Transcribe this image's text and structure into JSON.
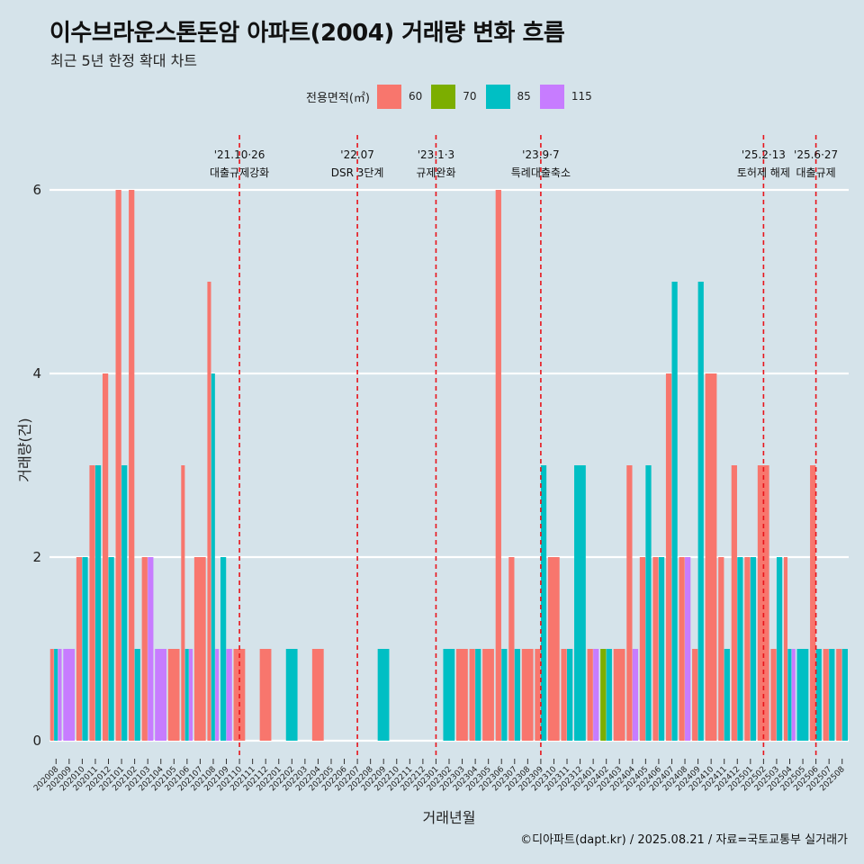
{
  "header": {
    "title": "이수브라운스톤돈암 아파트(2004) 거래량 변화 흐름",
    "subtitle": "최근 5년 한정 확대 차트"
  },
  "legend": {
    "title": "전용면적(㎡)",
    "items": [
      {
        "label": "60",
        "color": "#f8766d"
      },
      {
        "label": "70",
        "color": "#7cae00"
      },
      {
        "label": "85",
        "color": "#00bfc4"
      },
      {
        "label": "115",
        "color": "#c77cff"
      }
    ]
  },
  "footer": {
    "caption": "©디아파트(dapt.kr) / 2025.08.21 / 자료=국토교통부 실거래가"
  },
  "chart_data": {
    "type": "bar",
    "title": "이수브라운스톤돈암 아파트(2004) 거래량 변화 흐름",
    "xlabel": "거래년월",
    "ylabel": "거래량(건)",
    "ylim": [
      0,
      6.5
    ],
    "y_ticks": [
      0,
      2,
      4,
      6
    ],
    "grid": true,
    "categories": [
      "202008",
      "202009",
      "202010",
      "202011",
      "202012",
      "202101",
      "202102",
      "202103",
      "202104",
      "202105",
      "202106",
      "202107",
      "202108",
      "202109",
      "202110",
      "202111",
      "202112",
      "202201",
      "202202",
      "202203",
      "202204",
      "202205",
      "202206",
      "202207",
      "202208",
      "202209",
      "202210",
      "202211",
      "202212",
      "202301",
      "202302",
      "202303",
      "202304",
      "202305",
      "202306",
      "202307",
      "202308",
      "202309",
      "202310",
      "202311",
      "202312",
      "202401",
      "202402",
      "202403",
      "202404",
      "202405",
      "202406",
      "202407",
      "202408",
      "202409",
      "202410",
      "202411",
      "202412",
      "202501",
      "202502",
      "202503",
      "202504",
      "202505",
      "202506",
      "202507",
      "202508"
    ],
    "x_tick_labels": [
      "202008",
      "202009",
      "202010",
      "202011",
      "202012",
      "202101",
      "202102",
      "202103",
      "202104",
      "202105",
      "202106",
      "202107",
      "202108",
      "202109",
      "202110",
      "202111",
      "202112",
      "202201",
      "202202",
      "202203",
      "202204",
      "202205",
      "202206",
      "202207",
      "202208",
      "202209",
      "202210",
      "202211",
      "202212",
      "202301",
      "202302",
      "202303",
      "202304",
      "202305",
      "202306",
      "202307",
      "202308",
      "202309",
      "202310",
      "202311",
      "202312",
      "202401",
      "202402",
      "202403",
      "202404",
      "202405",
      "202406",
      "202407",
      "202408",
      "202409",
      "202410",
      "202411",
      "202412",
      "202501",
      "202502",
      "202503",
      "202504",
      "202505",
      "202506",
      "202507",
      "202508"
    ],
    "series": [
      {
        "name": "60",
        "color": "#f8766d",
        "values": [
          1,
          0,
          2,
          3,
          4,
          6,
          6,
          2,
          0,
          1,
          3,
          2,
          5,
          0,
          1,
          0,
          1,
          0,
          0,
          0,
          1,
          0,
          0,
          0,
          0,
          0,
          0,
          0,
          0,
          0,
          0,
          1,
          1,
          1,
          6,
          2,
          1,
          1,
          2,
          1,
          0,
          1,
          0,
          1,
          3,
          2,
          2,
          4,
          2,
          1,
          4,
          2,
          3,
          2,
          3,
          1,
          2,
          0,
          3,
          1,
          1
        ]
      },
      {
        "name": "70",
        "color": "#7cae00",
        "values": [
          0,
          0,
          0,
          0,
          0,
          0,
          0,
          0,
          0,
          0,
          0,
          0,
          0,
          0,
          0,
          0,
          0,
          0,
          0,
          0,
          0,
          0,
          0,
          0,
          0,
          0,
          0,
          0,
          0,
          0,
          0,
          0,
          0,
          0,
          0,
          0,
          0,
          0,
          0,
          0,
          0,
          0,
          1,
          0,
          0,
          0,
          0,
          0,
          0,
          0,
          0,
          0,
          0,
          0,
          0,
          0,
          0,
          0,
          0,
          0,
          0
        ]
      },
      {
        "name": "85",
        "color": "#00bfc4",
        "values": [
          1,
          0,
          2,
          3,
          2,
          3,
          1,
          0,
          0,
          0,
          1,
          0,
          4,
          2,
          0,
          0,
          0,
          0,
          1,
          0,
          0,
          0,
          0,
          0,
          0,
          1,
          0,
          0,
          0,
          0,
          1,
          0,
          1,
          0,
          1,
          1,
          0,
          3,
          0,
          1,
          3,
          0,
          1,
          0,
          0,
          3,
          2,
          5,
          0,
          5,
          0,
          1,
          2,
          2,
          0,
          2,
          1,
          1,
          1,
          1,
          1
        ]
      },
      {
        "name": "115",
        "color": "#c77cff",
        "values": [
          1,
          1,
          0,
          0,
          0,
          0,
          0,
          2,
          1,
          0,
          1,
          0,
          1,
          1,
          0,
          0,
          0,
          0,
          0,
          0,
          0,
          0,
          0,
          0,
          0,
          0,
          0,
          0,
          0,
          0,
          0,
          0,
          0,
          0,
          0,
          0,
          0,
          0,
          0,
          0,
          0,
          1,
          0,
          0,
          1,
          0,
          0,
          0,
          2,
          0,
          0,
          0,
          0,
          0,
          0,
          0,
          1,
          0,
          0,
          0,
          0
        ]
      }
    ],
    "annotations": [
      {
        "date_label": "'21.10·26",
        "text": "대출규제강화",
        "x_category": "202110"
      },
      {
        "date_label": "'22.07",
        "text": "DSR 3단계",
        "x_category": "202207"
      },
      {
        "date_label": "'23.1·3",
        "text": "규제완화",
        "x_category": "202301"
      },
      {
        "date_label": "'23.9·7",
        "text": "특례대출축소",
        "x_category": "202309"
      },
      {
        "date_label": "'25.2·13",
        "text": "토허제 해제",
        "x_category": "202502"
      },
      {
        "date_label": "'25.6·27",
        "text": "대출규제",
        "x_category": "202506"
      }
    ]
  }
}
